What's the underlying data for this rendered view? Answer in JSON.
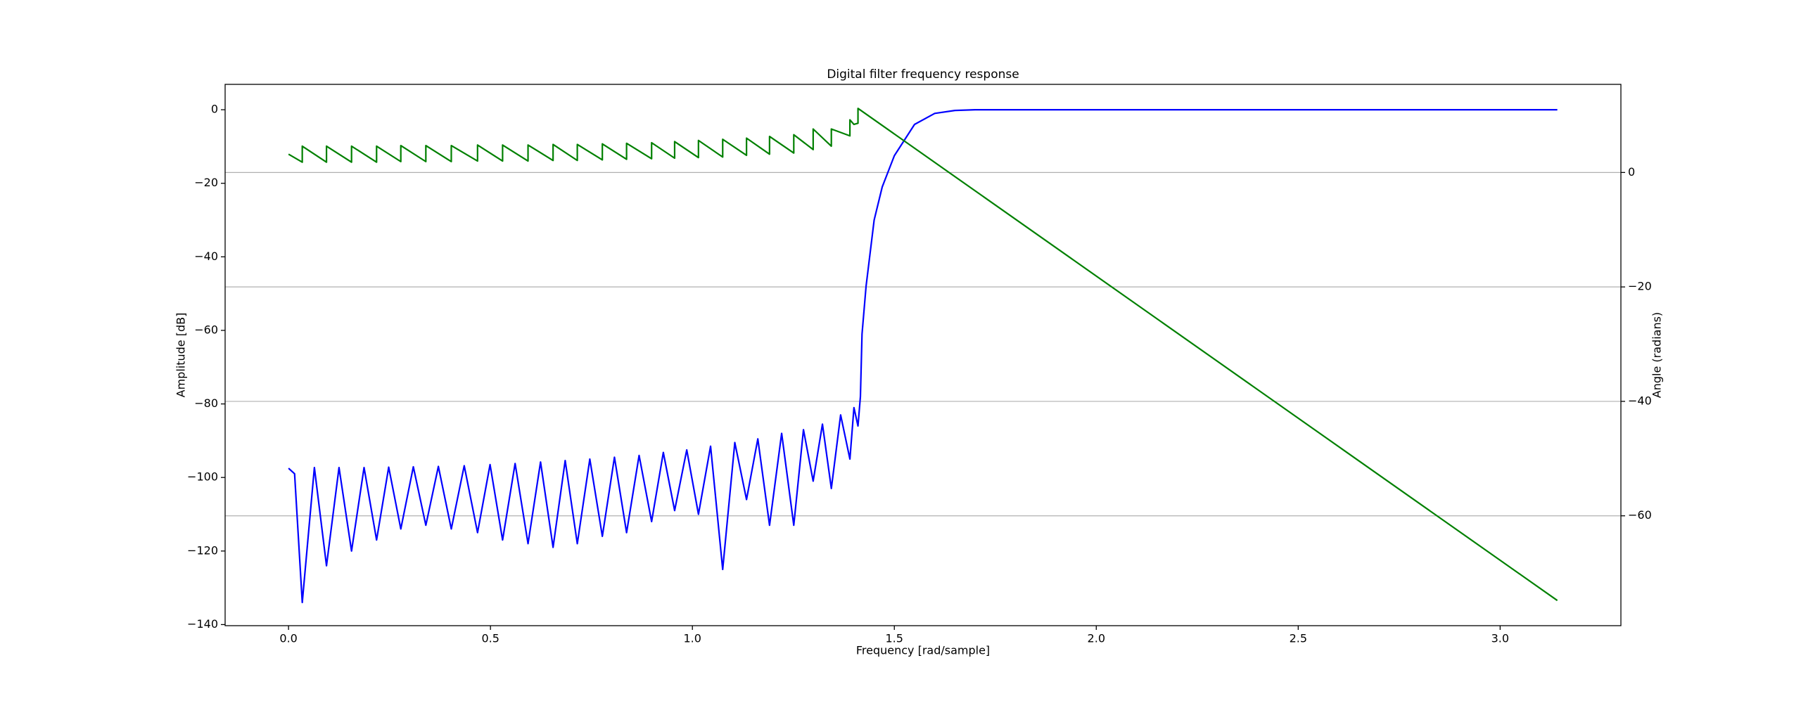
{
  "chart_data": {
    "type": "line",
    "title": "Digital filter frequency response",
    "xlabel": "Frequency [rad/sample]",
    "ylabel": "Amplitude [dB]",
    "y2label": "Angle (radians)",
    "ylabel_color": "#0000ff",
    "y2label_color": "#008000",
    "xlim": [
      -0.157,
      3.299
    ],
    "ylim": [
      -140.3,
      6.9
    ],
    "y2lim": [
      -79.2,
      15.4
    ],
    "xticks": [
      {
        "value": 0,
        "label": "0.0"
      },
      0.5,
      {
        "value": 1,
        "label": "1.0"
      },
      1.5,
      {
        "value": 2,
        "label": "2.0"
      },
      2.5,
      {
        "value": 3,
        "label": "3.0"
      }
    ],
    "yticks": [
      0,
      {
        "value": -20,
        "label": "−20"
      },
      {
        "value": -40,
        "label": "−40"
      },
      {
        "value": -60,
        "label": "−60"
      },
      {
        "value": -80,
        "label": "−80"
      },
      {
        "value": -100,
        "label": "−100"
      },
      {
        "value": -120,
        "label": "−120"
      },
      {
        "value": -140,
        "label": "−140"
      }
    ],
    "y2ticks": [
      0,
      {
        "value": -20,
        "label": "−20"
      },
      {
        "value": -40,
        "label": "−40"
      },
      {
        "value": -60,
        "label": "−60"
      }
    ],
    "grid": "y2",
    "series": [
      {
        "color": "#0000ff",
        "axis": "y",
        "x": [
          0.0,
          0.015,
          0.034,
          0.064,
          0.094,
          0.125,
          0.156,
          0.187,
          0.218,
          0.248,
          0.278,
          0.309,
          0.34,
          0.371,
          0.403,
          0.435,
          0.468,
          0.499,
          0.53,
          0.561,
          0.593,
          0.624,
          0.655,
          0.685,
          0.715,
          0.746,
          0.777,
          0.807,
          0.837,
          0.868,
          0.899,
          0.928,
          0.956,
          0.986,
          1.015,
          1.045,
          1.075,
          1.105,
          1.134,
          1.162,
          1.191,
          1.221,
          1.251,
          1.275,
          1.299,
          1.322,
          1.344,
          1.367,
          1.39,
          1.4,
          1.41,
          1.416,
          1.42,
          1.43,
          1.45,
          1.47,
          1.5,
          1.55,
          1.6,
          1.65,
          1.7,
          3.1416
        ],
        "values": [
          -97.5,
          -99,
          -134,
          -97.3,
          -124,
          -97.3,
          -120,
          -97.3,
          -117,
          -97.2,
          -114,
          -97.1,
          -113,
          -97,
          -114,
          -96.8,
          -115,
          -96.5,
          -117,
          -96.2,
          -118,
          -95.8,
          -119,
          -95.4,
          -118,
          -95,
          -116,
          -94.5,
          -115,
          -94,
          -112,
          -93.2,
          -109,
          -92.5,
          -110,
          -91.5,
          -125,
          -90.5,
          -106,
          -89.5,
          -113,
          -88,
          -113,
          -87,
          -101,
          -85.5,
          -103,
          -83,
          -95,
          -81,
          -86,
          -78,
          -61,
          -48,
          -30,
          -21,
          -12.5,
          -4,
          -1,
          -0.2,
          0,
          0
        ]
      },
      {
        "color": "#008000",
        "axis": "y2",
        "x": [
          0.0,
          0.034,
          0.034,
          0.094,
          0.094,
          0.156,
          0.156,
          0.218,
          0.218,
          0.278,
          0.278,
          0.34,
          0.34,
          0.403,
          0.403,
          0.468,
          0.468,
          0.53,
          0.53,
          0.593,
          0.593,
          0.655,
          0.655,
          0.715,
          0.715,
          0.777,
          0.777,
          0.837,
          0.837,
          0.899,
          0.899,
          0.956,
          0.956,
          1.015,
          1.015,
          1.075,
          1.075,
          1.134,
          1.134,
          1.191,
          1.191,
          1.251,
          1.251,
          1.299,
          1.299,
          1.344,
          1.344,
          1.39,
          1.39,
          1.4,
          1.41,
          1.41,
          3.1416
        ],
        "values": [
          3.2,
          1.8,
          4.6,
          1.8,
          4.6,
          1.8,
          4.6,
          1.8,
          4.6,
          1.9,
          4.7,
          1.9,
          4.7,
          1.9,
          4.7,
          2.0,
          4.8,
          2.0,
          4.8,
          2.0,
          4.8,
          2.1,
          4.9,
          2.1,
          4.9,
          2.2,
          5.0,
          2.3,
          5.1,
          2.4,
          5.2,
          2.5,
          5.4,
          2.6,
          5.6,
          2.7,
          5.8,
          3.0,
          6.0,
          3.2,
          6.3,
          3.4,
          6.6,
          4.0,
          7.6,
          4.6,
          7.6,
          6.4,
          9.2,
          8.4,
          8.6,
          11.2,
          -74.8
        ]
      }
    ]
  }
}
